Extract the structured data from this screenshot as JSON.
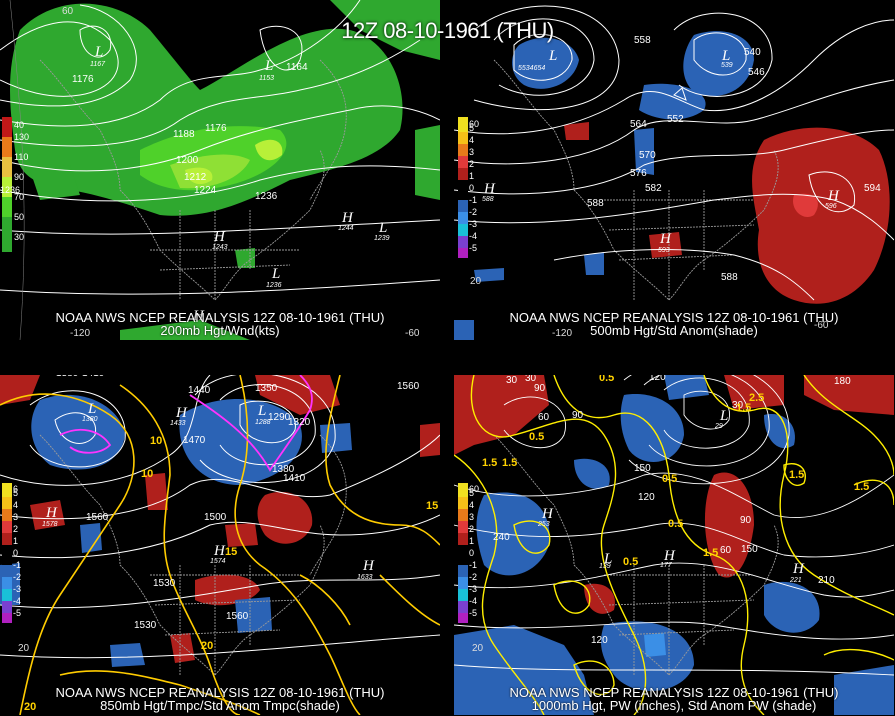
{
  "title": "12Z 08-10-1961 (THU)",
  "colors": {
    "wind_light": "#2fa82f",
    "wind_mid": "#4fd12a",
    "wind_bright": "#b8f038",
    "anom_pos1": "#b0201c",
    "anom_pos2": "#e03a3a",
    "anom_neg1": "#2b63b5",
    "anom_neg2": "#3b8fe6",
    "contour": "#ffffff",
    "isotherm": "#ffcc00",
    "freezing": "#ff33ff",
    "coast": "#9a9a9a"
  },
  "panels": [
    {
      "id": "200mb",
      "caption_line1": "NOAA NWS NCEP REANALYSIS 12Z 08-10-1961 (THU)",
      "caption_line2": "200mb Hgt/Wnd(kts)",
      "legend": [
        "130",
        "110",
        "90",
        "70",
        "50",
        "30"
      ],
      "legend_extra": [
        "1236",
        "40"
      ],
      "labels": [
        "1176",
        "1188",
        "1200",
        "1212",
        "1224",
        "1176",
        "1164",
        "1236"
      ],
      "centers": [
        {
          "type": "L",
          "value": "1167"
        },
        {
          "type": "L",
          "value": "1153"
        },
        {
          "type": "H",
          "value": "1243"
        },
        {
          "type": "H",
          "value": "1244"
        },
        {
          "type": "L",
          "value": "1239"
        },
        {
          "type": "L",
          "value": "1236"
        },
        {
          "type": "H",
          "value": ""
        }
      ],
      "coords": [
        "60",
        "-120",
        "-60"
      ]
    },
    {
      "id": "500mb",
      "caption_line1": "NOAA NWS NCEP REANALYSIS 12Z 08-10-1961 (THU)",
      "caption_line2": "500mb Hgt/Std Anom(shade)",
      "legend": [
        "5",
        "4",
        "3",
        "2",
        "1",
        "0",
        "-1",
        "-2",
        "-3",
        "-4",
        "-5"
      ],
      "legend_extra": [
        "60"
      ],
      "labels": [
        "558",
        "564",
        "552",
        "570",
        "576",
        "582",
        "588",
        "588",
        "594",
        "540",
        "546"
      ],
      "centers": [
        {
          "type": "L",
          "value": "5534654"
        },
        {
          "type": "L",
          "value": "539"
        },
        {
          "type": "H",
          "value": "588"
        },
        {
          "type": "H",
          "value": "593"
        },
        {
          "type": "H",
          "value": "596"
        }
      ],
      "coords": [
        "20",
        "-120",
        "-60"
      ]
    },
    {
      "id": "850mb",
      "caption_line1": "NOAA NWS NCEP REANALYSIS 12Z 08-10-1961 (THU)",
      "caption_line2": "850mb Hgt/Tmpc/Std Anom Tmpc(shade)",
      "legend": [
        "5",
        "4",
        "3",
        "2",
        "1",
        "0",
        "-1",
        "-2",
        "-3",
        "-4",
        "-5"
      ],
      "legend_extra": [
        "6"
      ],
      "labels": [
        "1380",
        "1410",
        "1440",
        "1350",
        "1560",
        "1470",
        "1380",
        "1410",
        "1500",
        "1560",
        "1530",
        "1530",
        "1560",
        "1320",
        "1290"
      ],
      "isotherms": [
        "10",
        "10",
        "15",
        "15",
        "20",
        "20"
      ],
      "centers": [
        {
          "type": "L",
          "value": "1380"
        },
        {
          "type": "H",
          "value": "1433"
        },
        {
          "type": "L",
          "value": "1288"
        },
        {
          "type": "H",
          "value": "1578"
        },
        {
          "type": "H",
          "value": "1574"
        },
        {
          "type": "H",
          "value": "1633"
        }
      ],
      "coords": [
        "20"
      ]
    },
    {
      "id": "1000mb",
      "caption_line1": "NOAA NWS NCEP REANALYSIS 12Z 08-10-1961 (THU)",
      "caption_line2": "1000mb Hgt, PW (inches), Std Anom PW (shade)",
      "legend": [
        "5",
        "4",
        "3",
        "2",
        "1",
        "0",
        "-1",
        "-2",
        "-3",
        "-4",
        "-5"
      ],
      "legend_extra": [
        "60"
      ],
      "labels": [
        "30",
        "90",
        "60",
        "90",
        "120",
        "180",
        "150",
        "120",
        "240",
        "60",
        "90",
        "150",
        "210",
        "120",
        "30",
        "30"
      ],
      "isolines": [
        "0.5",
        "0.5",
        "1.5",
        "1.5",
        "0.5",
        "0.5",
        "1.5",
        "1.5",
        "0.5",
        "1.5",
        "1.5",
        "2.5"
      ],
      "centers": [
        {
          "type": "L",
          "value": "29"
        },
        {
          "type": "H",
          "value": "253"
        },
        {
          "type": "L",
          "value": "139"
        },
        {
          "type": "H",
          "value": "177"
        },
        {
          "type": "H",
          "value": "221"
        }
      ],
      "coords": [
        "20"
      ]
    }
  ]
}
